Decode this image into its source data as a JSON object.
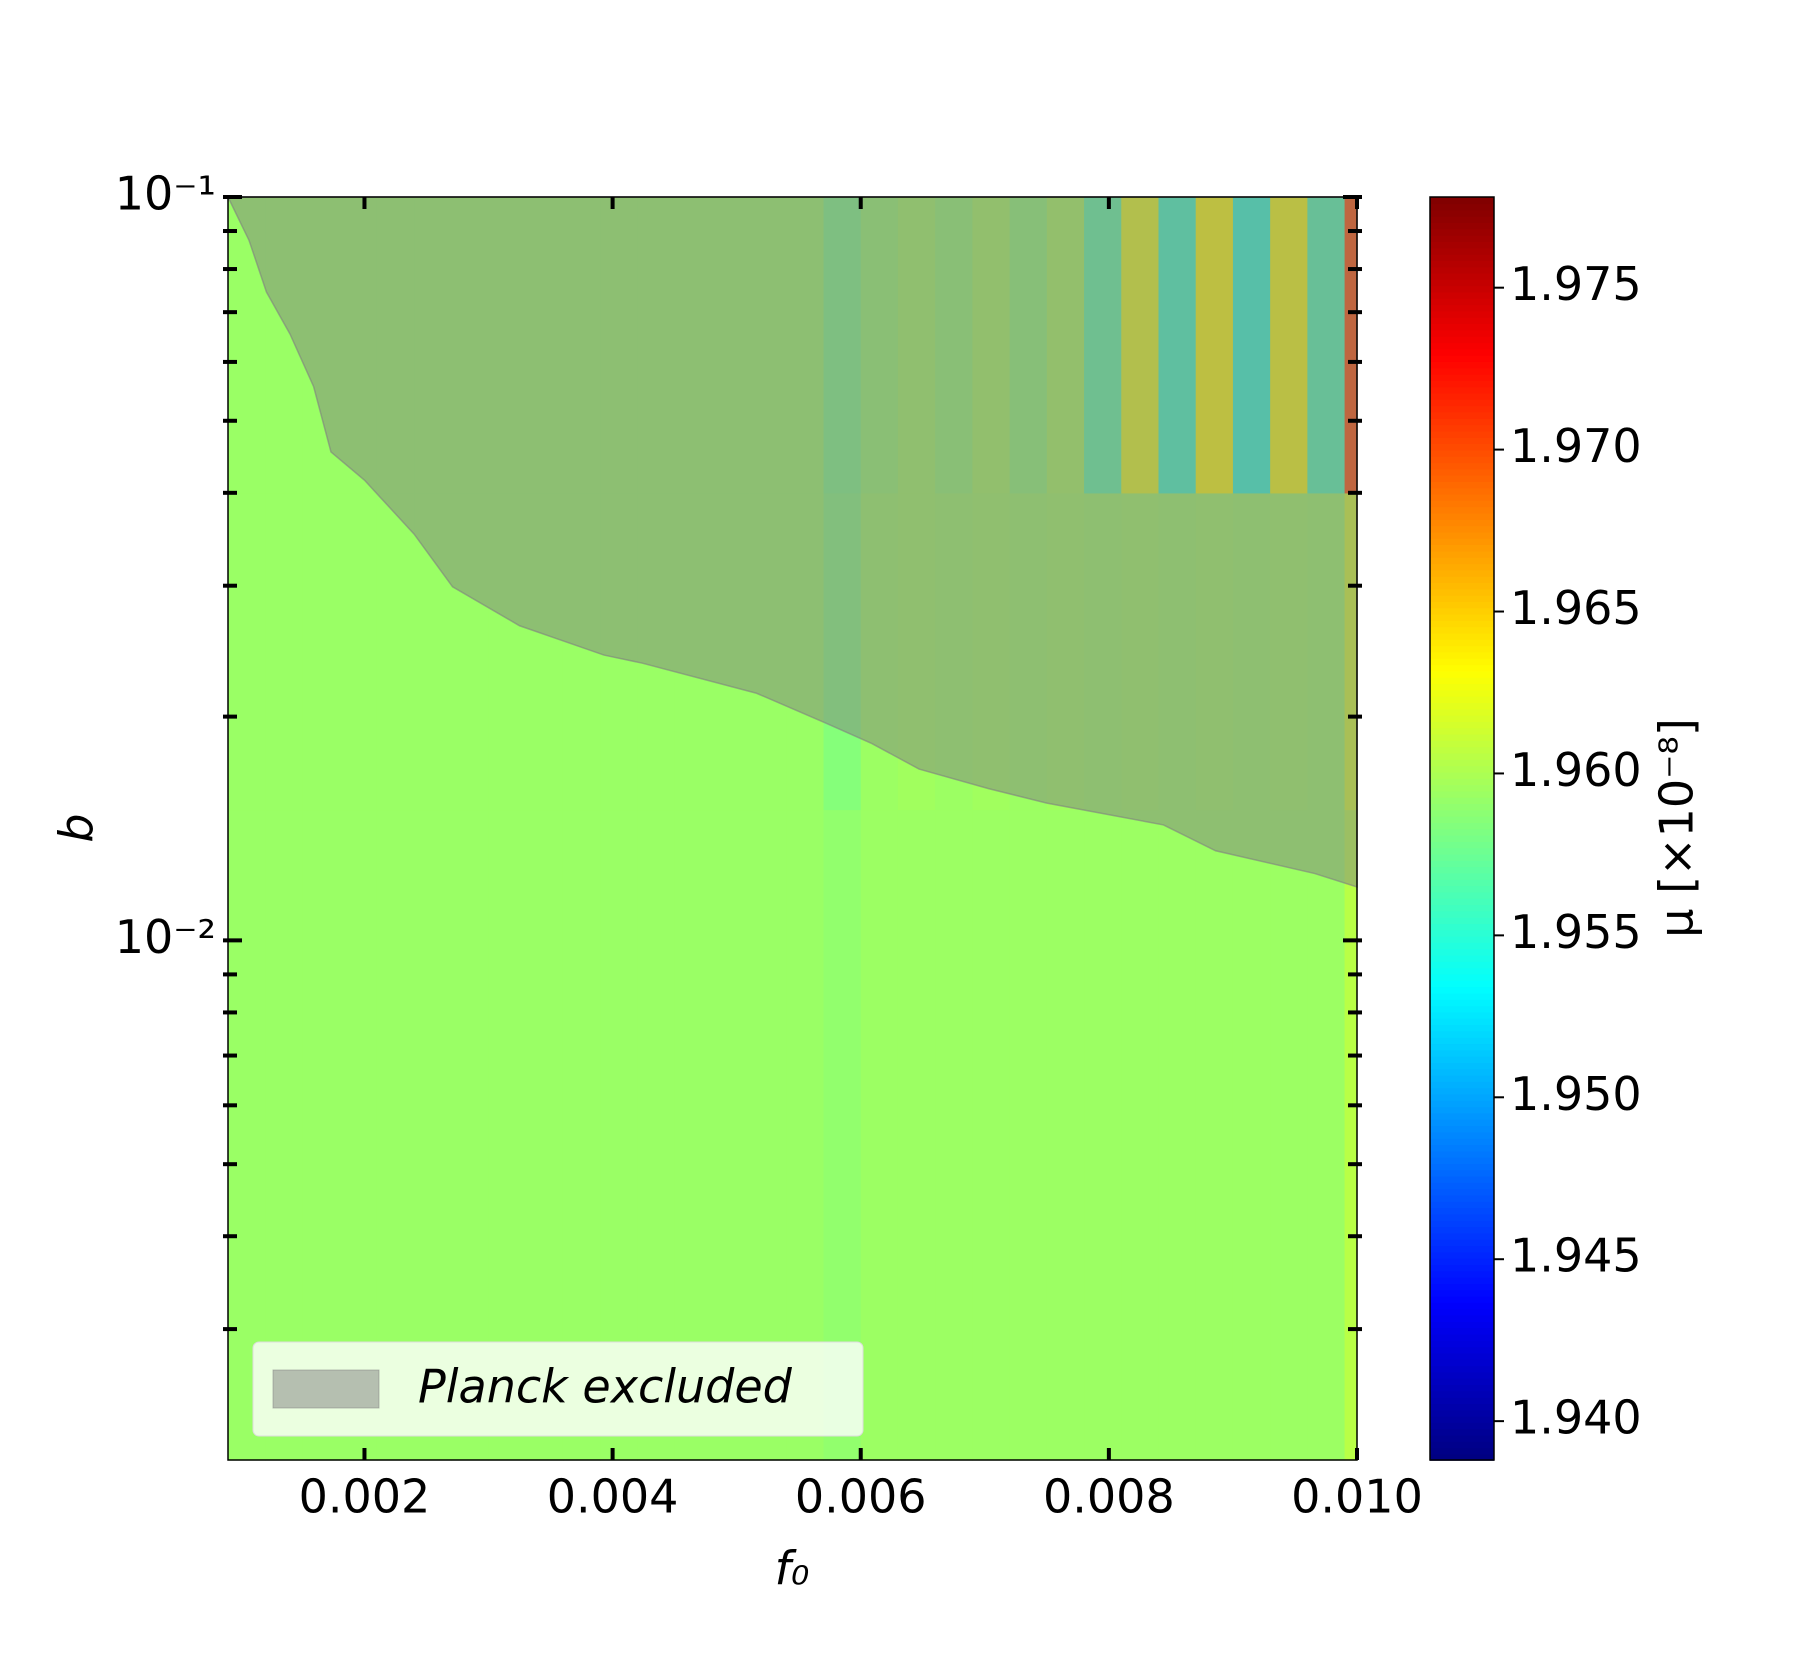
{
  "chart_data": {
    "type": "heatmap",
    "x_label": "f₀",
    "y_label": "b",
    "colorbar_label": "μ [×10⁻⁸]",
    "colormap": "jet",
    "xlim": [
      0.0009,
      0.01
    ],
    "ylim": [
      0.002,
      0.1
    ],
    "ylog": true,
    "clim": [
      1.9388,
      1.9778
    ],
    "xticks": [
      0.002,
      0.004,
      0.006,
      0.008,
      {
        "value": 0.01,
        "label": "0.010"
      }
    ],
    "yticks": [
      {
        "value": 0.01,
        "label": "10⁻²"
      },
      {
        "value": 0.1,
        "label": "10⁻¹"
      }
    ],
    "yminor_ticks": [
      0.003,
      0.004,
      0.005,
      0.006,
      0.007,
      0.008,
      0.009,
      0.02,
      0.03,
      0.04,
      0.05,
      0.06,
      0.07,
      0.08,
      0.09
    ],
    "cticks": [
      {
        "value": 1.94,
        "label": "1.940"
      },
      1.945,
      {
        "value": 1.95,
        "label": "1.950"
      },
      1.955,
      {
        "value": 1.96,
        "label": "1.960"
      },
      1.965,
      {
        "value": 1.97,
        "label": "1.970"
      },
      1.975
    ],
    "x_edges": [
      0.0009,
      0.0012,
      0.0015,
      0.0018,
      0.0021,
      0.0024,
      0.0027,
      0.003,
      0.0033,
      0.0036,
      0.0039,
      0.0042,
      0.0045,
      0.0048,
      0.0051,
      0.0054,
      0.0057,
      0.006,
      0.0063,
      0.0066,
      0.0069,
      0.0072,
      0.0075,
      0.0078,
      0.0081,
      0.0084,
      0.0087,
      0.009,
      0.0093,
      0.0096,
      0.0099,
      0.01
    ],
    "y_edges": [
      0.002,
      0.015,
      0.04,
      0.1
    ],
    "z": [
      [
        1.9593,
        1.9593,
        1.9593,
        1.9593,
        1.9593,
        1.9593,
        1.9593,
        1.9593,
        1.9593,
        1.9593,
        1.9593,
        1.9593,
        1.9593,
        1.9593,
        1.9593,
        1.9593,
        1.959,
        1.9594,
        1.9594,
        1.9594,
        1.9594,
        1.9594,
        1.9594,
        1.9594,
        1.9594,
        1.9594,
        1.9594,
        1.9594,
        1.9594,
        1.9594,
        1.9605
      ],
      [
        1.9593,
        1.9593,
        1.9593,
        1.9593,
        1.9593,
        1.9593,
        1.9593,
        1.9593,
        1.9593,
        1.9593,
        1.9593,
        1.9593,
        1.9593,
        1.9593,
        1.9593,
        1.9593,
        1.9585,
        1.9594,
        1.9596,
        1.9594,
        1.9596,
        1.9594,
        1.9596,
        1.9594,
        1.9596,
        1.9594,
        1.9596,
        1.9594,
        1.9596,
        1.9594,
        1.9615
      ],
      [
        1.9593,
        1.9593,
        1.9593,
        1.9593,
        1.9593,
        1.9593,
        1.9593,
        1.9593,
        1.9593,
        1.9593,
        1.9593,
        1.9593,
        1.9593,
        1.9593,
        1.9593,
        1.9593,
        1.9582,
        1.9591,
        1.9596,
        1.959,
        1.9597,
        1.9589,
        1.9598,
        1.957,
        1.9622,
        1.9558,
        1.963,
        1.9552,
        1.9628,
        1.9565,
        1.97
      ]
    ],
    "excluded": {
      "name": "Planck excluded",
      "color": "#808080",
      "opacity": 0.5,
      "x": [
        0.0009,
        0.00107,
        0.00121,
        0.0014,
        0.00159,
        0.00173,
        0.002,
        0.0024,
        0.00271,
        0.00325,
        0.00393,
        0.00424,
        0.00516,
        0.00572,
        0.00609,
        0.00647,
        0.00703,
        0.0075,
        0.00844,
        0.00886,
        0.00966,
        0.01
      ],
      "y": [
        0.1,
        0.0874,
        0.0745,
        0.0654,
        0.0556,
        0.0454,
        0.0416,
        0.0352,
        0.0299,
        0.0265,
        0.0242,
        0.0236,
        0.0215,
        0.0196,
        0.0184,
        0.017,
        0.016,
        0.0153,
        0.0143,
        0.0132,
        0.0123,
        0.0118
      ]
    },
    "legend_loc": "lower left"
  }
}
